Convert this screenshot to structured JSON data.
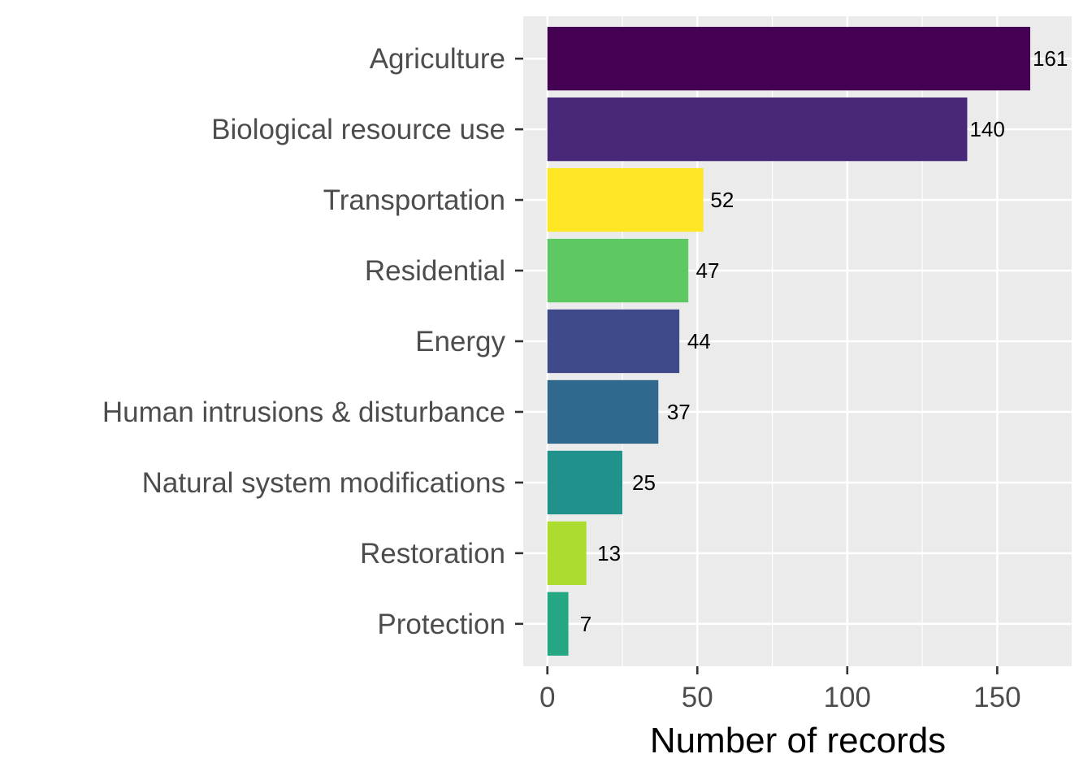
{
  "chart_data": {
    "type": "bar",
    "orientation": "horizontal",
    "categories": [
      "Agriculture",
      "Biological resource use",
      "Transportation",
      "Residential",
      "Energy",
      "Human intrusions & disturbance",
      "Natural system modifications",
      "Restoration",
      "Protection"
    ],
    "values": [
      161,
      140,
      52,
      47,
      44,
      37,
      25,
      13,
      7
    ],
    "value_labels": [
      "161",
      "140",
      "52",
      "47",
      "44",
      "37",
      "25",
      "13",
      "7"
    ],
    "colors": [
      "#440154",
      "#482878",
      "#fde725",
      "#5ec962",
      "#3e4a89",
      "#31688e",
      "#21918c",
      "#addc30",
      "#26a784"
    ],
    "xlabel": "Number of records",
    "ylabel": "",
    "xlim": [
      -8.05,
      175.1
    ],
    "x_ticks": [
      0,
      50,
      100,
      150
    ],
    "x_tick_labels": [
      "0",
      "50",
      "100",
      "150"
    ],
    "grid": true,
    "panel_background": "#ebebeb",
    "grid_color": "#ffffff"
  }
}
